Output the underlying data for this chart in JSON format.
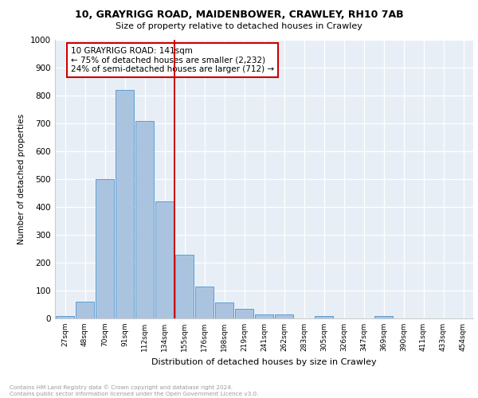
{
  "title1": "10, GRAYRIGG ROAD, MAIDENBOWER, CRAWLEY, RH10 7AB",
  "title2": "Size of property relative to detached houses in Crawley",
  "xlabel": "Distribution of detached houses by size in Crawley",
  "ylabel": "Number of detached properties",
  "bar_labels": [
    "27sqm",
    "48sqm",
    "70sqm",
    "91sqm",
    "112sqm",
    "134sqm",
    "155sqm",
    "176sqm",
    "198sqm",
    "219sqm",
    "241sqm",
    "262sqm",
    "283sqm",
    "305sqm",
    "326sqm",
    "347sqm",
    "369sqm",
    "390sqm",
    "411sqm",
    "433sqm",
    "454sqm"
  ],
  "bar_values": [
    8,
    60,
    500,
    820,
    710,
    420,
    230,
    115,
    57,
    35,
    13,
    15,
    0,
    10,
    0,
    0,
    9,
    0,
    0,
    0,
    0
  ],
  "bar_color": "#aac4e0",
  "bar_edge_color": "#5a9fd4",
  "vline_x": 5.5,
  "vline_color": "#cc0000",
  "annotation_text": "10 GRAYRIGG ROAD: 141sqm\n← 75% of detached houses are smaller (2,232)\n24% of semi-detached houses are larger (712) →",
  "annotation_box_color": "#cc0000",
  "ylim": [
    0,
    1000
  ],
  "yticks": [
    0,
    100,
    200,
    300,
    400,
    500,
    600,
    700,
    800,
    900,
    1000
  ],
  "bg_color": "#e8eef5",
  "footer_line1": "Contains HM Land Registry data © Crown copyright and database right 2024.",
  "footer_line2": "Contains public sector information licensed under the Open Government Licence v3.0."
}
